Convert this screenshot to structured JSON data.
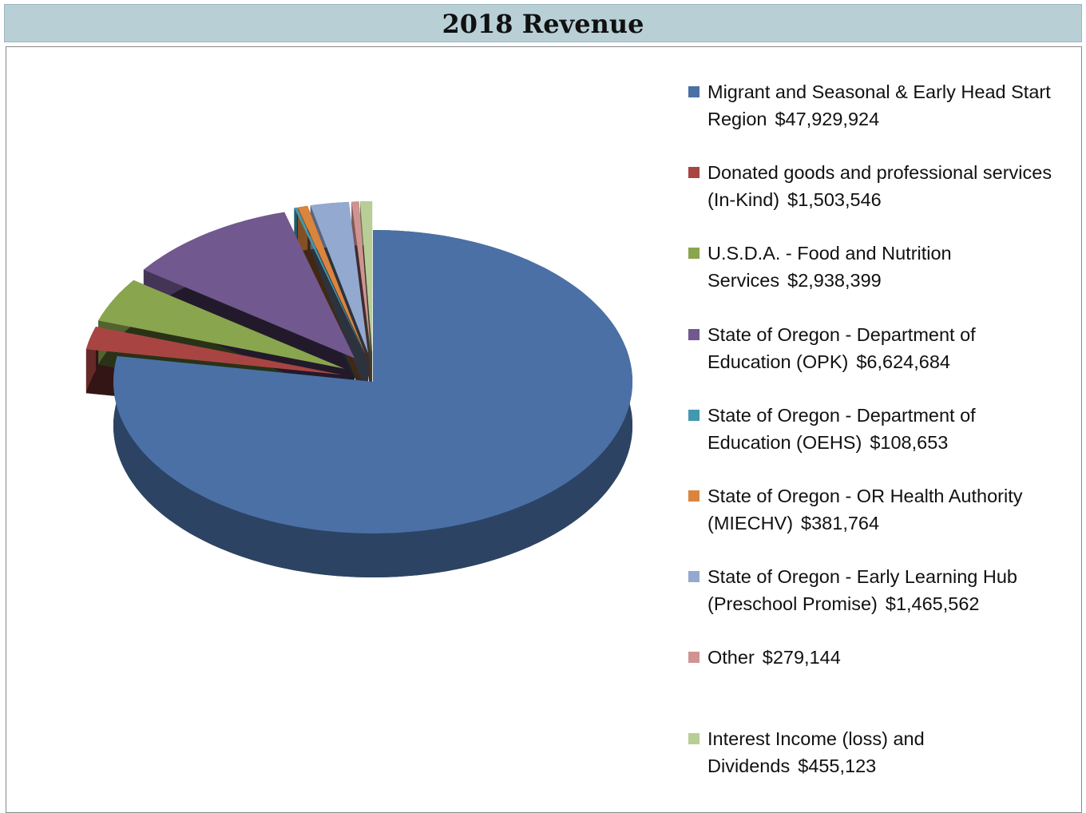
{
  "chart_data": {
    "type": "pie",
    "title": "2018 Revenue",
    "categories": [
      "Migrant and Seasonal & Early Head Start Region",
      "Donated goods and professional services (In-Kind)",
      "U.S.D.A. - Food and Nutrition Services",
      "State of Oregon - Department of Education (OPK)",
      "State of Oregon - Department of Education (OEHS)",
      "State of Oregon - OR Health Authority (MIECHV)",
      "State of Oregon - Early Learning Hub (Preschool Promise)",
      "Other",
      "Interest Income (loss) and Dividends"
    ],
    "values": [
      47929924,
      1503546,
      2938399,
      6624684,
      108653,
      381764,
      1465562,
      279144,
      455123
    ],
    "value_labels": [
      "$47,929,924",
      "$1,503,546",
      "$2,938,399",
      "$6,624,684",
      "$108,653",
      "$381,764",
      "$1,465,562",
      "$279,144",
      "$455,123"
    ],
    "colors": [
      "#4a70a6",
      "#a84542",
      "#89a54e",
      "#71588f",
      "#4198af",
      "#db843d",
      "#93a9cf",
      "#d19392",
      "#b9cd96"
    ],
    "legend": "right"
  }
}
